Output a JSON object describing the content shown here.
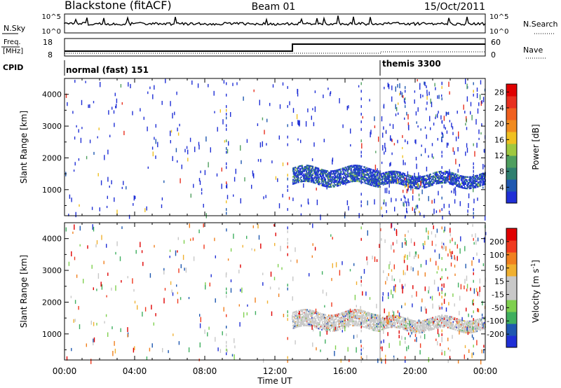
{
  "header": {
    "station": "Blackstone (fitACF)",
    "beam": "Beam 01",
    "date": "15/Oct/2011"
  },
  "nsky": {
    "label": "N.Sky",
    "right_label": "N.Search",
    "ticks_left": [
      "10^5",
      "10^0"
    ],
    "ticks_right": [
      "10^5",
      "10^0"
    ]
  },
  "freq": {
    "label_line1": "Freq.",
    "label_line2": "[MHz]",
    "ticks_left": [
      "18",
      "8"
    ],
    "right_label": "Nave",
    "ticks_right": [
      "60",
      "0"
    ]
  },
  "cpid": {
    "label": "CPID",
    "modes": [
      "normal (fast) 151",
      "themis 3300"
    ]
  },
  "x_axis": {
    "label": "Time UT",
    "ticks": [
      "00:00",
      "04:00",
      "08:00",
      "12:00",
      "16:00",
      "20:00",
      "00:00"
    ]
  },
  "colors": {
    "power": [
      "#1f2fd6",
      "#1f58b0",
      "#2f7f6f",
      "#4f9f5f",
      "#9fc83f",
      "#f0c020",
      "#f08a1f",
      "#f0601f",
      "#e8301f",
      "#e00000"
    ],
    "velocity": [
      "#e00000",
      "#f03a1f",
      "#f0801f",
      "#f0b030",
      "#c8c8c8",
      "#c8c8c8",
      "#7fd04f",
      "#3faf5f",
      "#1f58b0",
      "#1f2fd6"
    ]
  },
  "chart_data": [
    {
      "type": "heatmap",
      "title": "",
      "xlabel": "",
      "ylabel": "Slant Range [km]",
      "xlim": [
        "00:00",
        "24:00"
      ],
      "ylim": [
        180,
        4500
      ],
      "y_ticks": [
        "1000",
        "2000",
        "3000",
        "4000"
      ],
      "colorbar": {
        "label": "Power [dB]",
        "ticks": [
          "4",
          "8",
          "12",
          "16",
          "20",
          "24",
          "28"
        ],
        "range": [
          0,
          30
        ]
      },
      "features": [
        {
          "desc": "scatter band",
          "time_start": "13:00",
          "time_end": "18:00",
          "range_km": [
            1200,
            1700
          ]
        },
        {
          "desc": "scatter band",
          "time_start": "18:00",
          "time_end": "24:00",
          "range_km": [
            1150,
            1550
          ]
        }
      ]
    },
    {
      "type": "heatmap",
      "title": "",
      "xlabel": "Time UT",
      "ylabel": "Slant Range [km]",
      "xlim": [
        "00:00",
        "24:00"
      ],
      "ylim": [
        180,
        4500
      ],
      "y_ticks": [
        "1000",
        "2000",
        "3000",
        "4000"
      ],
      "colorbar": {
        "label": "Velocity [m s^-1]",
        "ticks": [
          "200",
          "100",
          "50",
          "15",
          "-15",
          "-50",
          "-100",
          "-200"
        ],
        "range": [
          -250,
          250
        ]
      },
      "features": [
        {
          "desc": "ground scatter band",
          "time_start": "13:00",
          "time_end": "18:00",
          "range_km": [
            1200,
            1700
          ]
        },
        {
          "desc": "ground scatter band",
          "time_start": "18:00",
          "time_end": "24:00",
          "range_km": [
            1150,
            1550
          ]
        }
      ]
    }
  ]
}
